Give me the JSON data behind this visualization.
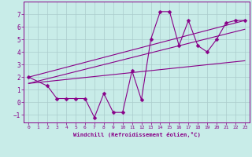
{
  "xlabel": "Windchill (Refroidissement éolien,°C)",
  "bg_color": "#c8ece8",
  "grid_color": "#aacccc",
  "line_color": "#880088",
  "spine_color": "#880088",
  "xlim": [
    -0.5,
    23.5
  ],
  "ylim": [
    -1.6,
    8.0
  ],
  "yticks": [
    -1,
    0,
    1,
    2,
    3,
    4,
    5,
    6,
    7
  ],
  "xticks": [
    0,
    1,
    2,
    3,
    4,
    5,
    6,
    7,
    8,
    9,
    10,
    11,
    12,
    13,
    14,
    15,
    16,
    17,
    18,
    19,
    20,
    21,
    22,
    23
  ],
  "series": [
    {
      "x": [
        0,
        2,
        3,
        4,
        5,
        6,
        7,
        8,
        9,
        10,
        11,
        12,
        13,
        14,
        15,
        16,
        17,
        18,
        19,
        20,
        21,
        22,
        23
      ],
      "y": [
        2.0,
        1.3,
        0.3,
        0.3,
        0.3,
        0.3,
        -1.2,
        0.7,
        -0.8,
        -0.8,
        2.5,
        0.2,
        5.0,
        7.2,
        7.2,
        4.5,
        6.5,
        4.5,
        4.0,
        5.0,
        6.3,
        6.5,
        6.5
      ],
      "marker": "D",
      "markersize": 2.5
    },
    {
      "x": [
        0,
        23
      ],
      "y": [
        1.5,
        3.3
      ],
      "marker": null
    },
    {
      "x": [
        0,
        23
      ],
      "y": [
        1.5,
        5.8
      ],
      "marker": null
    },
    {
      "x": [
        0,
        23
      ],
      "y": [
        2.0,
        6.5
      ],
      "marker": null
    }
  ]
}
